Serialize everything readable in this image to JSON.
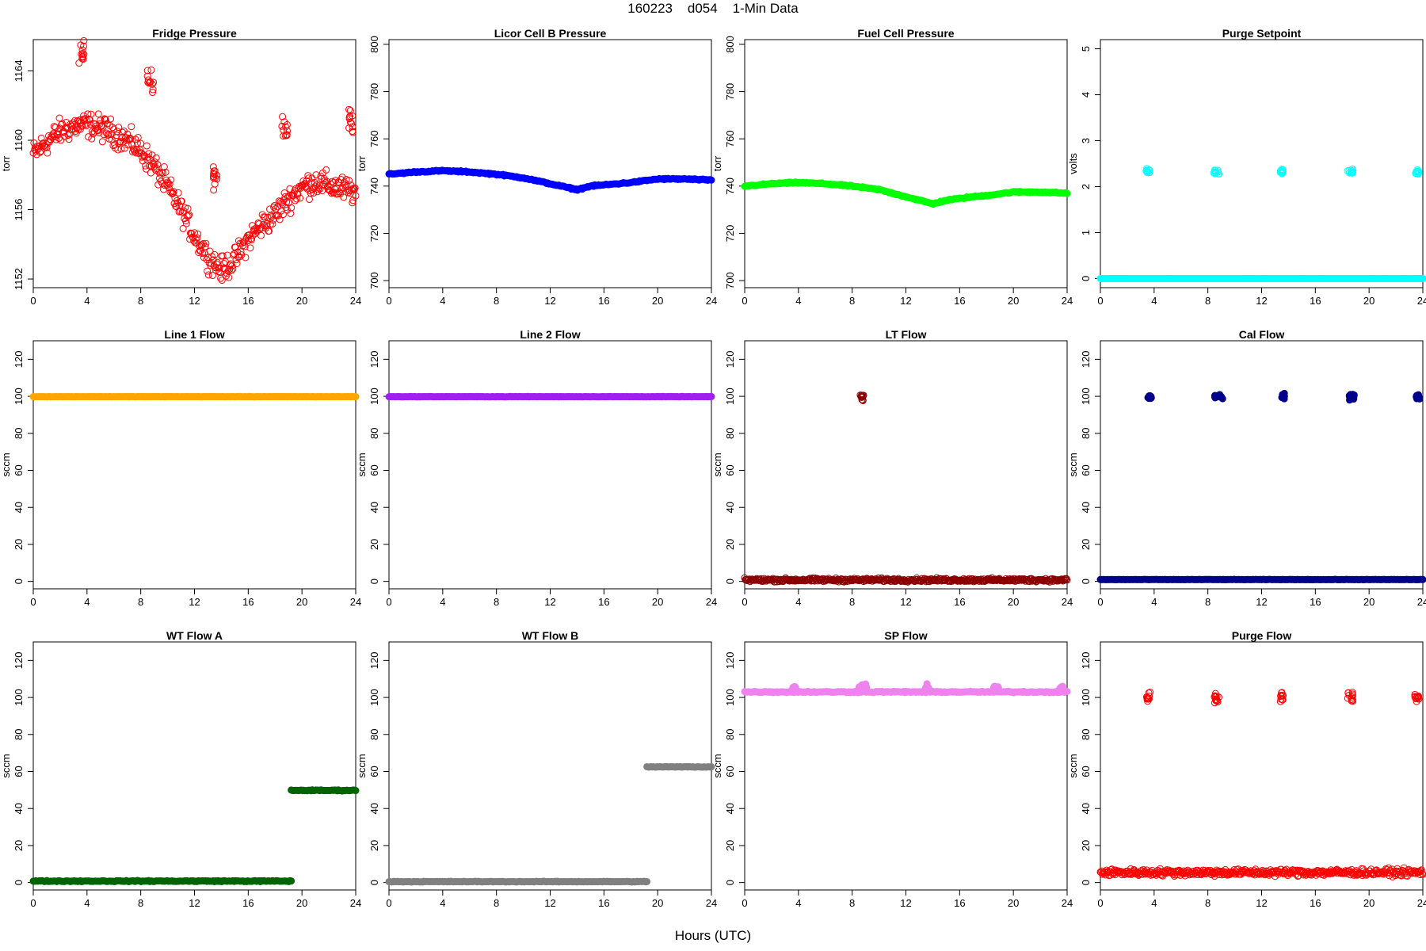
{
  "header": {
    "title": "160223    d054    1-Min Data"
  },
  "footer": {
    "xlabel": "Hours (UTC)"
  },
  "chart_data": [
    {
      "type": "scatter",
      "title": "Fridge Pressure",
      "ylabel": "torr",
      "color": "#ff0000",
      "marker": "open",
      "xlim": [
        0,
        24
      ],
      "ylim": [
        1151.5,
        1165.8
      ],
      "xticks": [
        0,
        4,
        8,
        12,
        16,
        20,
        24
      ],
      "yticks": [
        1152,
        1156,
        1160,
        1164
      ],
      "baseline": [
        [
          0,
          1159.2
        ],
        [
          1,
          1159.9
        ],
        [
          2,
          1160.5
        ],
        [
          3,
          1160.8
        ],
        [
          4,
          1160.9
        ],
        [
          5,
          1160.7
        ],
        [
          6,
          1160.4
        ],
        [
          7,
          1160.0
        ],
        [
          8,
          1159.4
        ],
        [
          9,
          1158.5
        ],
        [
          10,
          1157.3
        ],
        [
          11,
          1156.0
        ],
        [
          12,
          1154.5
        ],
        [
          13,
          1153.3
        ],
        [
          14,
          1152.5
        ],
        [
          15,
          1153.1
        ],
        [
          16,
          1154.3
        ],
        [
          17,
          1155.1
        ],
        [
          18,
          1155.7
        ],
        [
          19,
          1156.6
        ],
        [
          20,
          1157.3
        ],
        [
          21,
          1157.6
        ],
        [
          22,
          1157.4
        ],
        [
          23,
          1157.2
        ],
        [
          24,
          1157.0
        ]
      ],
      "spread": 0.8,
      "events": [
        {
          "x": [
            3.4,
            3.8
          ],
          "y": 1165.0
        },
        {
          "x": [
            8.5,
            9.0
          ],
          "y": 1163.5
        },
        {
          "x": [
            13.4,
            13.7
          ],
          "y": 1157.9
        },
        {
          "x": [
            18.5,
            18.9
          ],
          "y": 1160.6
        },
        {
          "x": [
            23.5,
            23.8
          ],
          "y": 1161.2
        }
      ]
    },
    {
      "type": "scatter",
      "title": "Licor Cell B Pressure",
      "ylabel": "torr",
      "color": "#0000ff",
      "marker": "filled",
      "xlim": [
        0,
        24
      ],
      "ylim": [
        697,
        802
      ],
      "xticks": [
        0,
        4,
        8,
        12,
        16,
        20,
        24
      ],
      "yticks": [
        700,
        720,
        740,
        760,
        780,
        800
      ],
      "baseline": [
        [
          0,
          745.0
        ],
        [
          2,
          746.0
        ],
        [
          4,
          746.5
        ],
        [
          6,
          746.0
        ],
        [
          8,
          745.0
        ],
        [
          10,
          743.5
        ],
        [
          12,
          741.0
        ],
        [
          14,
          738.5
        ],
        [
          15,
          740.0
        ],
        [
          17,
          741.0
        ],
        [
          18,
          741.5
        ],
        [
          20,
          743.0
        ],
        [
          22,
          743.0
        ],
        [
          24,
          742.5
        ]
      ],
      "spread": 0.3,
      "events": []
    },
    {
      "type": "scatter",
      "title": "Fuel Cell Pressure",
      "ylabel": "torr",
      "color": "#00ff00",
      "marker": "filled",
      "xlim": [
        0,
        24
      ],
      "ylim": [
        697,
        802
      ],
      "xticks": [
        0,
        4,
        8,
        12,
        16,
        20,
        24
      ],
      "yticks": [
        700,
        720,
        740,
        760,
        780,
        800
      ],
      "baseline": [
        [
          0,
          740.0
        ],
        [
          2,
          741.0
        ],
        [
          4,
          741.5
        ],
        [
          6,
          741.0
        ],
        [
          8,
          740.0
        ],
        [
          10,
          738.5
        ],
        [
          12,
          735.5
        ],
        [
          14,
          732.5
        ],
        [
          15,
          734.0
        ],
        [
          17,
          735.5
        ],
        [
          18,
          736.0
        ],
        [
          20,
          737.5
        ],
        [
          22,
          737.5
        ],
        [
          24,
          737.0
        ]
      ],
      "spread": 0.3,
      "events": []
    },
    {
      "type": "scatter",
      "title": "Purge Setpoint",
      "ylabel": "volts",
      "color": "#00ffff",
      "marker": "mixed",
      "xlim": [
        0,
        24
      ],
      "ylim": [
        -0.2,
        5.2
      ],
      "xticks": [
        0,
        4,
        8,
        12,
        16,
        20,
        24
      ],
      "yticks": [
        0,
        1,
        2,
        3,
        4,
        5
      ],
      "baseline": [
        [
          0,
          0.0
        ],
        [
          24,
          0.0
        ]
      ],
      "spread": 0.0,
      "events": [
        {
          "x": [
            3.4,
            3.7
          ],
          "y": 2.33
        },
        {
          "x": [
            8.4,
            8.9
          ],
          "y": 2.33
        },
        {
          "x": [
            13.4,
            13.6
          ],
          "y": 2.33
        },
        {
          "x": [
            18.4,
            18.8
          ],
          "y": 2.33
        },
        {
          "x": [
            23.4,
            23.7
          ],
          "y": 2.33
        }
      ]
    },
    {
      "type": "scatter",
      "title": "Line 1 Flow",
      "ylabel": "sccm",
      "color": "#ffa500",
      "marker": "filled",
      "xlim": [
        0,
        24
      ],
      "ylim": [
        -4,
        130
      ],
      "xticks": [
        0,
        4,
        8,
        12,
        16,
        20,
        24
      ],
      "yticks": [
        0,
        20,
        40,
        60,
        80,
        100,
        120
      ],
      "baseline": [
        [
          0,
          99.8
        ],
        [
          24,
          99.8
        ]
      ],
      "spread": 0.1,
      "events": []
    },
    {
      "type": "scatter",
      "title": "Line 2 Flow",
      "ylabel": "sccm",
      "color": "#a020f0",
      "marker": "filled",
      "xlim": [
        0,
        24
      ],
      "ylim": [
        -4,
        130
      ],
      "xticks": [
        0,
        4,
        8,
        12,
        16,
        20,
        24
      ],
      "yticks": [
        0,
        20,
        40,
        60,
        80,
        100,
        120
      ],
      "baseline": [
        [
          0,
          99.8
        ],
        [
          24,
          99.8
        ]
      ],
      "spread": 0.1,
      "events": []
    },
    {
      "type": "scatter",
      "title": "LT Flow",
      "ylabel": "sccm",
      "color": "#8b0000",
      "marker": "open",
      "xlim": [
        0,
        24
      ],
      "ylim": [
        -4,
        130
      ],
      "xticks": [
        0,
        4,
        8,
        12,
        16,
        20,
        24
      ],
      "yticks": [
        0,
        20,
        40,
        60,
        80,
        100,
        120
      ],
      "baseline": [
        [
          0,
          0.8
        ],
        [
          24,
          0.8
        ]
      ],
      "spread": 1.0,
      "events": [
        {
          "x": [
            8.6,
            8.9
          ],
          "y": 99.5
        }
      ]
    },
    {
      "type": "scatter",
      "title": "Cal Flow",
      "ylabel": "sccm",
      "color": "#00008b",
      "marker": "filled",
      "xlim": [
        0,
        24
      ],
      "ylim": [
        -4,
        130
      ],
      "xticks": [
        0,
        4,
        8,
        12,
        16,
        20,
        24
      ],
      "yticks": [
        0,
        20,
        40,
        60,
        80,
        100,
        120
      ],
      "baseline": [
        [
          0,
          1.0
        ],
        [
          24,
          1.0
        ]
      ],
      "spread": 0.1,
      "events": [
        {
          "x": [
            3.5,
            3.8
          ],
          "y": 99.8
        },
        {
          "x": [
            8.5,
            9.1
          ],
          "y": 99.8
        },
        {
          "x": [
            13.5,
            13.7
          ],
          "y": 99.8
        },
        {
          "x": [
            18.5,
            18.9
          ],
          "y": 99.8
        },
        {
          "x": [
            23.5,
            23.8
          ],
          "y": 99.8
        }
      ]
    },
    {
      "type": "scatter",
      "title": "WT Flow A",
      "ylabel": "sccm",
      "color": "#006400",
      "marker": "filled",
      "xlim": [
        0,
        24
      ],
      "ylim": [
        -4,
        130
      ],
      "xticks": [
        0,
        4,
        8,
        12,
        16,
        20,
        24
      ],
      "yticks": [
        0,
        20,
        40,
        60,
        80,
        100,
        120
      ],
      "segments": [
        {
          "x": [
            0,
            19.2
          ],
          "y": 0.8
        },
        {
          "x": [
            19.2,
            24
          ],
          "y": 49.8
        }
      ],
      "spread": 0.3,
      "events": []
    },
    {
      "type": "scatter",
      "title": "WT Flow B",
      "ylabel": "sccm",
      "color": "#808080",
      "marker": "filled",
      "xlim": [
        0,
        24
      ],
      "ylim": [
        -4,
        130
      ],
      "xticks": [
        0,
        4,
        8,
        12,
        16,
        20,
        24
      ],
      "yticks": [
        0,
        20,
        40,
        60,
        80,
        100,
        120
      ],
      "segments": [
        {
          "x": [
            0,
            19.2
          ],
          "y": 0.5
        },
        {
          "x": [
            19.2,
            24
          ],
          "y": 62.5
        }
      ],
      "spread": 0.2,
      "events": []
    },
    {
      "type": "scatter",
      "title": "SP Flow",
      "ylabel": "sccm",
      "color": "#ee82ee",
      "marker": "filled",
      "xlim": [
        0,
        24
      ],
      "ylim": [
        -4,
        130
      ],
      "xticks": [
        0,
        4,
        8,
        12,
        16,
        20,
        24
      ],
      "yticks": [
        0,
        20,
        40,
        60,
        80,
        100,
        120
      ],
      "baseline": [
        [
          0,
          103.0
        ],
        [
          24,
          103.0
        ]
      ],
      "spread": 0.4,
      "events": [
        {
          "x": [
            3.5,
            3.8
          ],
          "y": 105.0
        },
        {
          "x": [
            8.5,
            9.1
          ],
          "y": 105.0
        },
        {
          "x": [
            13.4,
            13.7
          ],
          "y": 105.0
        },
        {
          "x": [
            18.5,
            18.9
          ],
          "y": 105.0
        },
        {
          "x": [
            23.4,
            23.7
          ],
          "y": 105.0
        }
      ]
    },
    {
      "type": "scatter",
      "title": "Purge Flow",
      "ylabel": "sccm",
      "color": "#ff0000",
      "marker": "open",
      "xlim": [
        0,
        24
      ],
      "ylim": [
        -4,
        130
      ],
      "xticks": [
        0,
        4,
        8,
        12,
        16,
        20,
        24
      ],
      "yticks": [
        0,
        20,
        40,
        60,
        80,
        100,
        120
      ],
      "baseline": [
        [
          0,
          5.5
        ],
        [
          24,
          5.5
        ]
      ],
      "spread": 2.0,
      "events": [
        {
          "x": [
            3.4,
            3.7
          ],
          "y": 100.0
        },
        {
          "x": [
            8.4,
            8.9
          ],
          "y": 100.0
        },
        {
          "x": [
            13.4,
            13.6
          ],
          "y": 100.0
        },
        {
          "x": [
            18.4,
            18.8
          ],
          "y": 100.0
        },
        {
          "x": [
            23.4,
            23.7
          ],
          "y": 100.0
        }
      ]
    }
  ]
}
